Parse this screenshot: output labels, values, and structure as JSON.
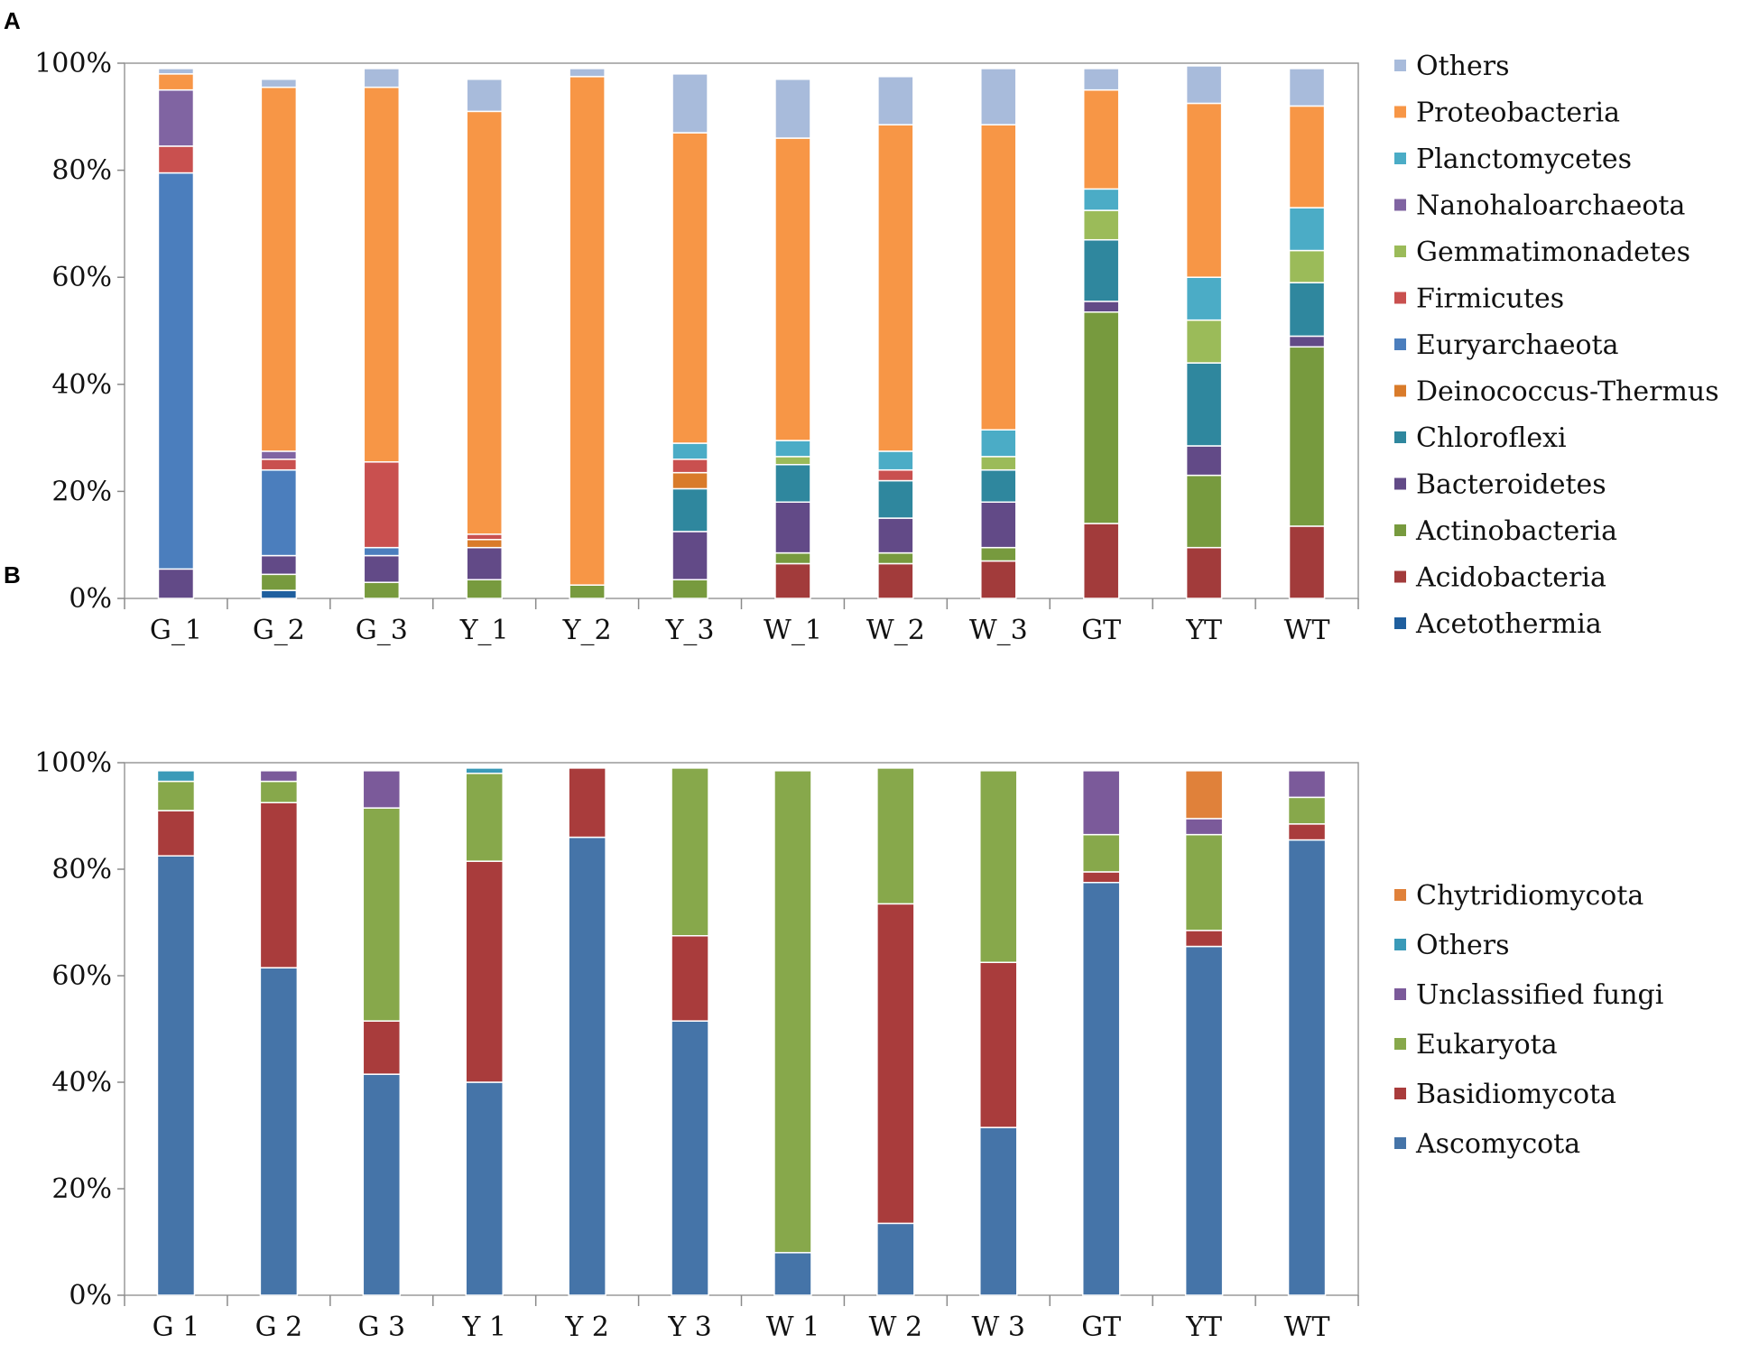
{
  "chart_data": [
    {
      "panel": "A",
      "type": "bar",
      "stacked": true,
      "title": "",
      "xlabel": "",
      "ylabel": "",
      "ylim": [
        0,
        100
      ],
      "y_ticks": [
        "0%",
        "20%",
        "40%",
        "60%",
        "80%",
        "100%"
      ],
      "categories": [
        "G_1",
        "G_2",
        "G_3",
        "Y_1",
        "Y_2",
        "Y_3",
        "W_1",
        "W_2",
        "W_3",
        "GT",
        "YT",
        "WT"
      ],
      "legend_position": "right",
      "series": [
        {
          "name": "Acetothermia",
          "color": "#1f5f9e",
          "values": [
            0,
            1.5,
            0,
            0,
            0,
            0,
            0,
            0,
            0,
            0,
            0,
            0
          ]
        },
        {
          "name": "Acidobacteria",
          "color": "#a23b3b",
          "values": [
            0,
            0,
            0,
            0,
            0,
            0,
            6.5,
            6.5,
            7,
            14,
            9.5,
            13.5
          ]
        },
        {
          "name": "Actinobacteria",
          "color": "#779a3e",
          "values": [
            0,
            3,
            3,
            3.5,
            2.5,
            3.5,
            2,
            2,
            2.5,
            39.5,
            13.5,
            33.5
          ]
        },
        {
          "name": "Bacteroidetes",
          "color": "#624a87",
          "values": [
            5.5,
            3.5,
            5,
            6,
            0,
            9,
            9.5,
            6.5,
            8.5,
            2,
            5.5,
            2
          ]
        },
        {
          "name": "Chloroflexi",
          "color": "#2f879e",
          "values": [
            0,
            0,
            0,
            0,
            0,
            8,
            7,
            7,
            6,
            11.5,
            15.5,
            10
          ]
        },
        {
          "name": "Deinococcus-Thermus",
          "color": "#d97b2a",
          "values": [
            0,
            0,
            0,
            1.5,
            0,
            3,
            0,
            0,
            0,
            0,
            0,
            0
          ]
        },
        {
          "name": "Euryarchaeota",
          "color": "#4b7ebd",
          "values": [
            74,
            16,
            1.5,
            0,
            0,
            0,
            0,
            0,
            0,
            0,
            0,
            0
          ]
        },
        {
          "name": "Firmicutes",
          "color": "#c9504f",
          "values": [
            5,
            2,
            16,
            1,
            0,
            2.5,
            0,
            2,
            0,
            0,
            0,
            0
          ]
        },
        {
          "name": "Gemmatimonadetes",
          "color": "#9bbb59",
          "values": [
            0,
            0,
            0,
            0,
            0,
            0,
            1.5,
            0,
            2.5,
            5.5,
            8,
            6
          ]
        },
        {
          "name": "Nanohaloarchaeota",
          "color": "#8064a2",
          "values": [
            10.5,
            1.5,
            0,
            0,
            0,
            0,
            0,
            0,
            0,
            0,
            0,
            0
          ]
        },
        {
          "name": "Planctomycetes",
          "color": "#4bacc6",
          "values": [
            0,
            0,
            0,
            0,
            0,
            3,
            3,
            3.5,
            5,
            4,
            8,
            8
          ]
        },
        {
          "name": "Proteobacteria",
          "color": "#f79646",
          "values": [
            3,
            68,
            70,
            79,
            95,
            58,
            56.5,
            61,
            57,
            18.5,
            32.5,
            19
          ]
        },
        {
          "name": "Others",
          "color": "#a8bbdb",
          "values": [
            1,
            1.5,
            3.5,
            6,
            1.5,
            11,
            11,
            9,
            10.5,
            4,
            7,
            7
          ]
        }
      ]
    },
    {
      "panel": "B",
      "type": "bar",
      "stacked": true,
      "title": "",
      "xlabel": "",
      "ylabel": "",
      "ylim": [
        0,
        100
      ],
      "y_ticks": [
        "0%",
        "20%",
        "40%",
        "60%",
        "80%",
        "100%"
      ],
      "categories": [
        "G 1",
        "G 2",
        "G 3",
        "Y 1",
        "Y 2",
        "Y 3",
        "W 1",
        "W 2",
        "W 3",
        "GT",
        "YT",
        "WT"
      ],
      "legend_position": "right",
      "series": [
        {
          "name": "Ascomycota",
          "color": "#4574a8",
          "values": [
            82.5,
            61.5,
            41.5,
            40,
            86,
            51.5,
            8,
            13.5,
            31.5,
            77.5,
            65.5,
            85.5
          ]
        },
        {
          "name": "Basidiomycota",
          "color": "#a93c3c",
          "values": [
            8.5,
            31,
            10,
            41.5,
            13,
            16,
            0,
            60,
            31,
            2,
            3,
            3
          ]
        },
        {
          "name": "Eukaryota",
          "color": "#87a84b",
          "values": [
            5.5,
            4,
            40,
            16.5,
            0,
            31.5,
            90.5,
            25.5,
            36,
            7,
            18,
            5
          ]
        },
        {
          "name": "Unclassified fungi",
          "color": "#7b5a9a",
          "values": [
            0,
            2,
            7,
            0,
            0,
            0,
            0,
            0,
            0,
            12,
            3,
            5
          ]
        },
        {
          "name": "Others",
          "color": "#3a9ab8",
          "values": [
            2,
            0,
            0,
            1,
            0,
            0,
            0,
            0,
            0,
            0,
            0,
            0
          ]
        },
        {
          "name": "Chytridiomycota",
          "color": "#e0813a",
          "values": [
            0,
            0,
            0,
            0,
            0,
            0,
            0,
            0,
            0,
            0,
            9,
            0
          ]
        }
      ]
    }
  ]
}
